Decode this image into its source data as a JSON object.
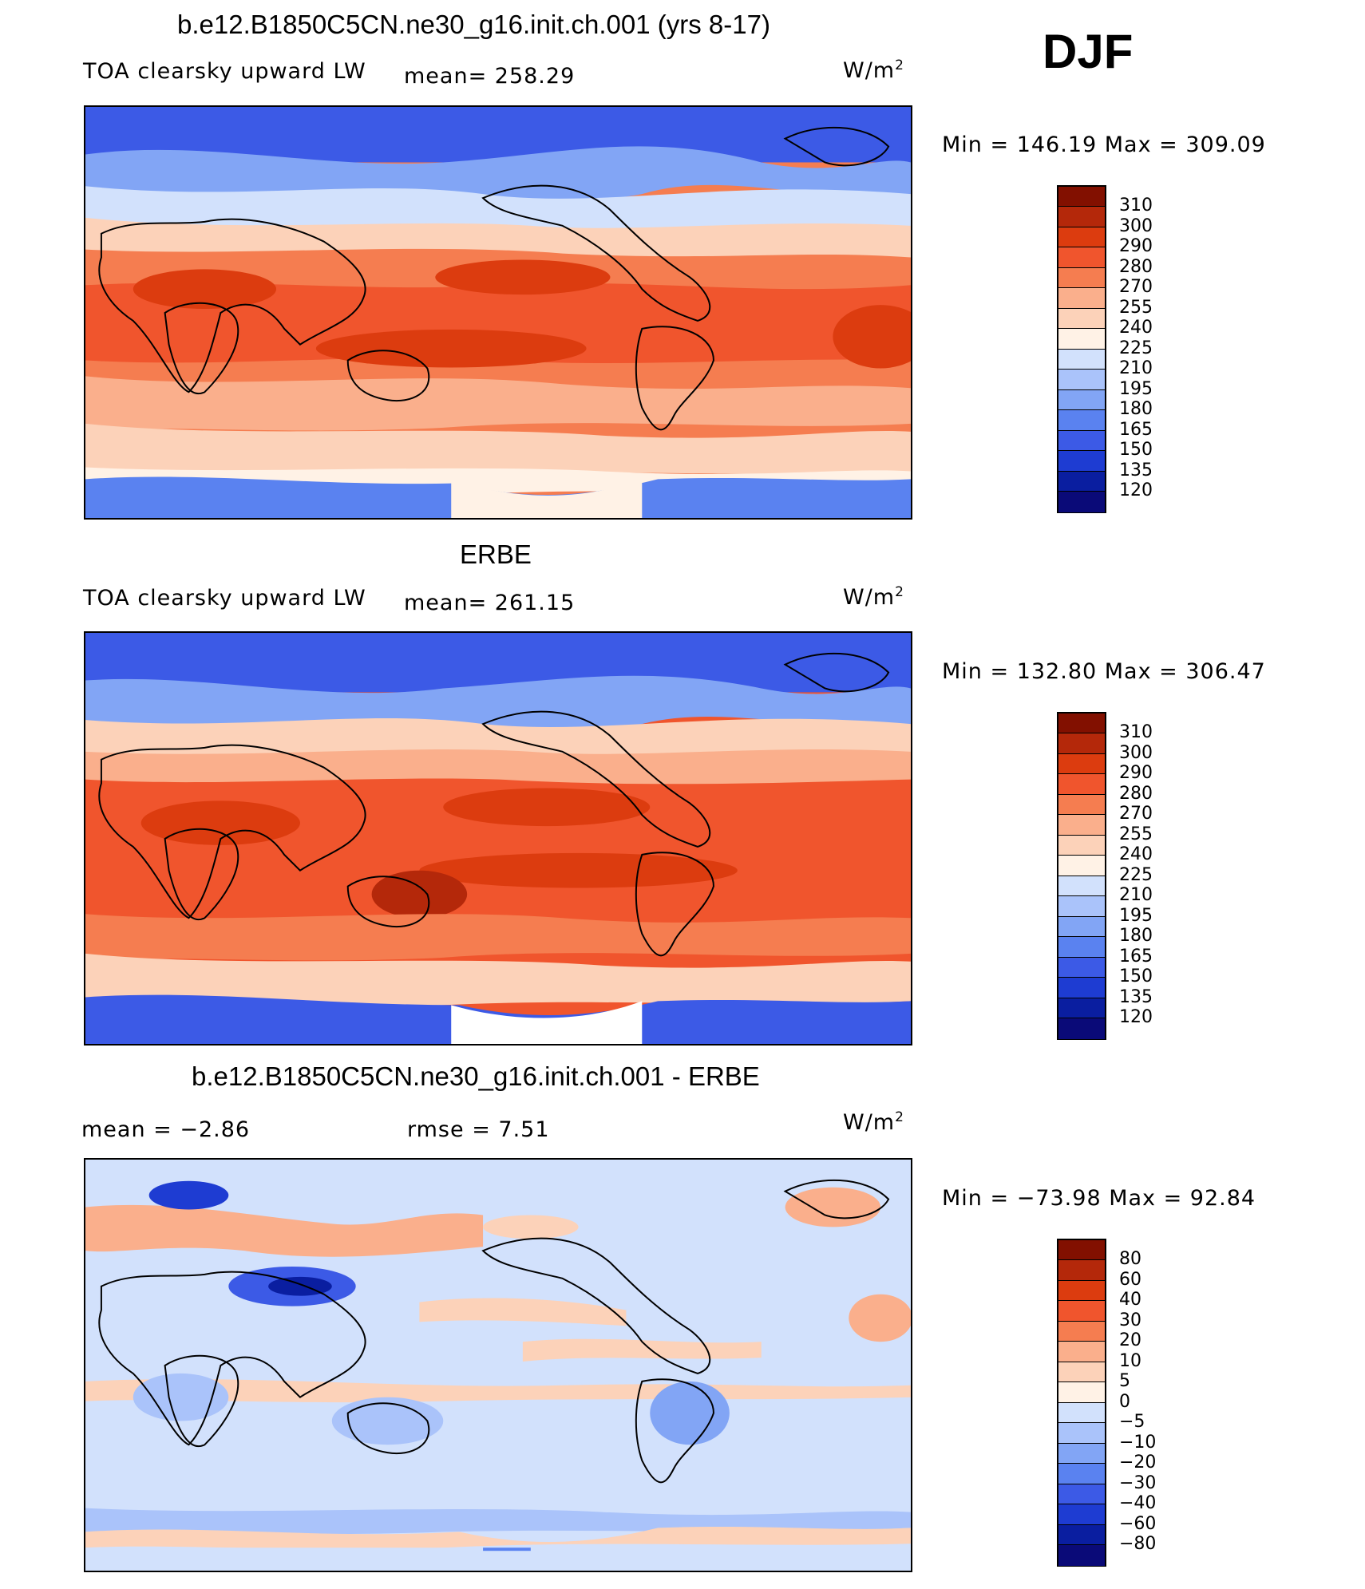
{
  "season": "DJF",
  "colors": {
    "full": [
      "#0a0a78",
      "#0a1ea0",
      "#1e3cd2",
      "#3c5ae6",
      "#5a82f0",
      "#82a5f5",
      "#aac3fa",
      "#d2e1fc",
      "#fff2e6",
      "#fcd2b9",
      "#faaf8c",
      "#f57d50",
      "#f0552d",
      "#dc3c0f",
      "#b4280a",
      "#821000"
    ],
    "diff": [
      "#0a0a78",
      "#0a1ea0",
      "#1e3cd2",
      "#3c5ae6",
      "#5a82f0",
      "#82a5f5",
      "#aac3fa",
      "#d2e1fc",
      "#fff2e6",
      "#fcd2b9",
      "#faaf8c",
      "#f57d50",
      "#f0552d",
      "#dc3c0f",
      "#b4280a",
      "#821000"
    ]
  },
  "panels": [
    {
      "title": "b.e12.B1850C5CN.ne30_g16.init.ch.001 (yrs 8-17)",
      "left_label": "TOA clearsky upward LW",
      "mean_label": "mean=  258.29",
      "units": "W/m",
      "units_sup": "2",
      "minmax": "Min  =  146.19  Max  =  309.09",
      "levels": [
        "310",
        "300",
        "290",
        "280",
        "270",
        "255",
        "240",
        "225",
        "210",
        "195",
        "180",
        "165",
        "150",
        "135",
        "120"
      ],
      "kind": "full"
    },
    {
      "title": "ERBE",
      "left_label": "TOA clearsky upward LW",
      "mean_label": "mean=  261.15",
      "units": "W/m",
      "units_sup": "2",
      "minmax": "Min  =  132.80  Max  =  306.47",
      "levels": [
        "310",
        "300",
        "290",
        "280",
        "270",
        "255",
        "240",
        "225",
        "210",
        "195",
        "180",
        "165",
        "150",
        "135",
        "120"
      ],
      "kind": "full"
    },
    {
      "title": "b.e12.B1850C5CN.ne30_g16.init.ch.001 - ERBE",
      "left_label": "mean  =    −2.86",
      "mean_label": "rmse  =     7.51",
      "units": "W/m",
      "units_sup": "2",
      "minmax": "Min  =  −73.98  Max  =    92.84",
      "levels": [
        "80",
        "60",
        "40",
        "30",
        "20",
        "10",
        "5",
        "0",
        "−5",
        "−10",
        "−20",
        "−30",
        "−40",
        "−60",
        "−80"
      ],
      "kind": "diff"
    }
  ]
}
